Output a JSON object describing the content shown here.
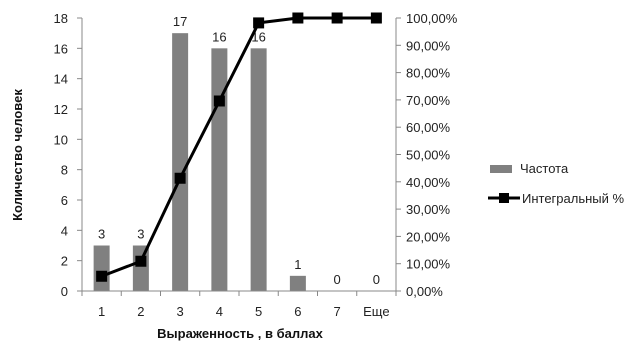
{
  "chart_data": {
    "type": "bar",
    "categories": [
      "1",
      "2",
      "3",
      "4",
      "5",
      "6",
      "7",
      "Еще"
    ],
    "series": [
      {
        "name": "Частота",
        "type": "bar",
        "axis": "left",
        "color": "#808080",
        "values": [
          3,
          3,
          17,
          16,
          16,
          1,
          0,
          0
        ]
      },
      {
        "name": "Интегральный %",
        "type": "line",
        "axis": "right",
        "color": "#000000",
        "marker": "square",
        "values": [
          5.4,
          10.9,
          41.3,
          69.6,
          98.2,
          100,
          100,
          100
        ]
      }
    ],
    "xlabel": "Выраженность , в баллах",
    "ylabel": "Количество человек",
    "ylim": [
      0,
      18
    ],
    "yticks": [
      "0",
      "2",
      "4",
      "6",
      "8",
      "10",
      "12",
      "14",
      "16",
      "18"
    ],
    "y2lim": [
      0,
      100
    ],
    "y2ticks": [
      "0,00%",
      "10,00%",
      "20,00%",
      "30,00%",
      "40,00%",
      "50,00%",
      "60,00%",
      "70,00%",
      "80,00%",
      "90,00%",
      "100,00%"
    ],
    "bar_data_labels": [
      "3",
      "3",
      "17",
      "16",
      "16",
      "1",
      "0",
      "0"
    ],
    "grid": false,
    "legend_position": "right"
  }
}
